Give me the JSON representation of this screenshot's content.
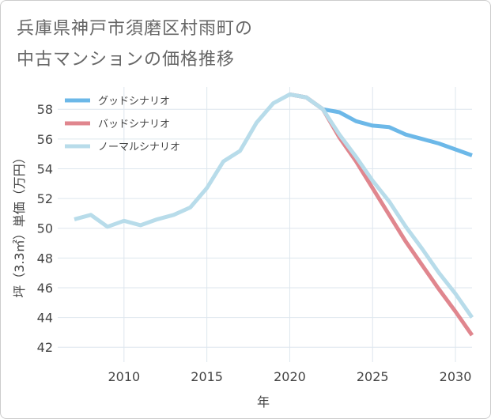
{
  "title_line1": "兵庫県神戸市須磨区村雨町の",
  "title_line2": "中古マンションの価格推移",
  "colors": {
    "good": "#6cb8e8",
    "bad": "#e0868e",
    "normal": "#b8dcea",
    "grid": "#dde6ee"
  },
  "chart_data": {
    "type": "line",
    "xlabel": "年",
    "ylabel": "坪（3.3㎡）単価（万円）",
    "xlim": [
      2006,
      2031
    ],
    "ylim": [
      41,
      59.5
    ],
    "xticks": [
      2010,
      2015,
      2020,
      2025,
      2030
    ],
    "yticks": [
      42,
      44,
      46,
      48,
      50,
      52,
      54,
      56,
      58
    ],
    "legend_position": "top-left",
    "series": [
      {
        "name": "グッドシナリオ",
        "key": "good",
        "x": [
          2020,
          2021,
          2022,
          2023,
          2024,
          2025,
          2026,
          2027,
          2028,
          2029,
          2030,
          2031
        ],
        "y": [
          59.0,
          58.8,
          58.0,
          57.8,
          57.2,
          56.9,
          56.8,
          56.3,
          56.0,
          55.7,
          55.3,
          54.9
        ]
      },
      {
        "name": "バッドシナリオ",
        "key": "bad",
        "x": [
          2020,
          2021,
          2022,
          2023,
          2024,
          2025,
          2026,
          2027,
          2028,
          2029,
          2030,
          2031
        ],
        "y": [
          59.0,
          58.8,
          58.0,
          56.1,
          54.5,
          52.7,
          50.9,
          49.1,
          47.5,
          45.9,
          44.4,
          42.8
        ]
      },
      {
        "name": "ノーマルシナリオ",
        "key": "normal",
        "x": [
          2007,
          2008,
          2009,
          2010,
          2011,
          2012,
          2013,
          2014,
          2015,
          2016,
          2017,
          2018,
          2019,
          2020,
          2021,
          2022,
          2023,
          2024,
          2025,
          2026,
          2027,
          2028,
          2029,
          2030,
          2031
        ],
        "y": [
          50.6,
          50.9,
          50.1,
          50.5,
          50.2,
          50.6,
          50.9,
          51.4,
          52.7,
          54.5,
          55.2,
          57.1,
          58.4,
          59.0,
          58.8,
          58.0,
          56.3,
          54.8,
          53.2,
          51.8,
          50.1,
          48.6,
          47.0,
          45.6,
          44.0
        ]
      }
    ]
  }
}
